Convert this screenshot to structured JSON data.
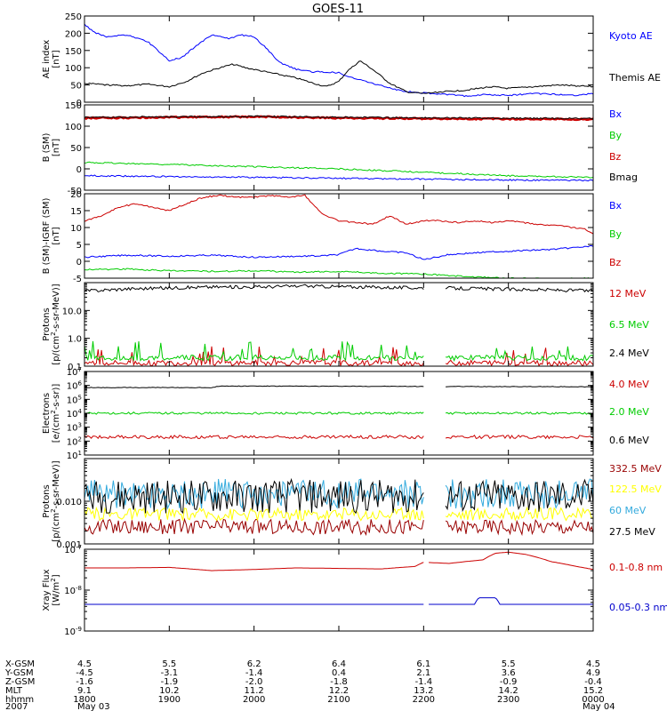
{
  "chart_data": {
    "type": "line",
    "title": "GOES-11",
    "x_range_hours": [
      18,
      24
    ],
    "panels": [
      {
        "ylabel": "AE index [nT]",
        "scale": "linear",
        "ylim": [
          0,
          250
        ],
        "ticks": [
          0,
          50,
          100,
          150,
          200,
          250
        ],
        "tick_labels": [
          "0",
          "50",
          "100",
          "150",
          "200",
          "250"
        ],
        "series": [
          {
            "name": "Kyoto AE",
            "color": "#0000ff",
            "x": [
              18.0,
              18.1,
              18.25,
              18.5,
              18.75,
              19.0,
              19.15,
              19.3,
              19.5,
              19.7,
              19.85,
              20.0,
              20.15,
              20.3,
              20.5,
              20.7,
              20.85,
              21.0,
              21.15,
              21.3,
              21.5,
              21.7,
              21.9,
              22.1,
              22.3,
              22.5,
              22.7,
              23.0,
              23.3,
              23.6,
              23.8,
              24.0
            ],
            "y": [
              225,
              205,
              190,
              195,
              175,
              120,
              130,
              160,
              195,
              185,
              195,
              190,
              155,
              115,
              95,
              88,
              88,
              85,
              72,
              62,
              48,
              35,
              28,
              25,
              22,
              18,
              22,
              20,
              25,
              22,
              20,
              25
            ]
          },
          {
            "name": "Themis AE",
            "color": "#000000",
            "x": [
              18.0,
              18.25,
              18.5,
              18.75,
              19.0,
              19.2,
              19.4,
              19.6,
              19.75,
              19.9,
              20.1,
              20.3,
              20.5,
              20.7,
              20.85,
              21.0,
              21.1,
              21.25,
              21.4,
              21.6,
              21.8,
              22.0,
              22.2,
              22.5,
              22.8,
              23.0,
              23.3,
              23.6,
              24.0
            ],
            "y": [
              55,
              50,
              48,
              52,
              45,
              60,
              85,
              100,
              110,
              100,
              90,
              80,
              70,
              55,
              45,
              60,
              90,
              120,
              95,
              55,
              30,
              25,
              30,
              35,
              45,
              40,
              45,
              50,
              45
            ]
          }
        ],
        "legend": [
          "Kyoto AE",
          "Themis AE"
        ]
      },
      {
        "ylabel": "B (SM) [nT]",
        "scale": "linear",
        "ylim": [
          -50,
          150
        ],
        "ticks": [
          -50,
          0,
          50,
          100,
          150
        ],
        "tick_labels": [
          "-50",
          "0",
          "50",
          "100",
          "150"
        ],
        "series": [
          {
            "name": "Bx",
            "color": "#0000ff",
            "x": [
              18.0,
              19.0,
              20.0,
              21.0,
              22.0,
              23.0,
              24.0
            ],
            "y": [
              -16,
              -18,
              -20,
              -22,
              -24,
              -26,
              -27
            ]
          },
          {
            "name": "By",
            "color": "#00cc00",
            "x": [
              18.0,
              19.0,
              20.0,
              21.0,
              22.0,
              23.0,
              24.0
            ],
            "y": [
              15,
              10,
              5,
              0,
              -8,
              -16,
              -20
            ]
          },
          {
            "name": "Bz",
            "color": "#cc0000",
            "x": [
              18.0,
              19.0,
              20.0,
              21.0,
              22.0,
              23.0,
              24.0
            ],
            "y": [
              119,
              121,
              122,
              119,
              118,
              117,
              116
            ]
          },
          {
            "name": "Bmag",
            "color": "#000000",
            "x": [
              18.0,
              19.0,
              20.0,
              21.0,
              22.0,
              23.0,
              24.0
            ],
            "y": [
              121,
              122,
              123,
              121,
              120,
              119,
              118
            ]
          }
        ],
        "legend": [
          "Bx",
          "By",
          "Bz",
          "Bmag"
        ]
      },
      {
        "ylabel": "B (SM)-IGRF (SM) [nT]",
        "scale": "linear",
        "ylim": [
          -5,
          20
        ],
        "ticks": [
          -5,
          0,
          5,
          10,
          15,
          20
        ],
        "tick_labels": [
          "-5",
          "0",
          "5",
          "10",
          "15",
          "20"
        ],
        "series": [
          {
            "name": "Bx",
            "color": "#0000ff",
            "x": [
              18.0,
              18.5,
              19.0,
              19.5,
              20.0,
              20.5,
              20.8,
              21.0,
              21.2,
              21.5,
              21.8,
              22.0,
              22.3,
              22.6,
              23.0,
              23.5,
              24.0
            ],
            "y": [
              1.2,
              1.8,
              1.5,
              1.8,
              1.2,
              1.5,
              1.6,
              2.0,
              3.8,
              3.0,
              2.5,
              0.5,
              2.0,
              2.5,
              3.0,
              3.5,
              4.5
            ]
          },
          {
            "name": "By",
            "color": "#00cc00",
            "x": [
              18.0,
              18.5,
              19.0,
              19.5,
              20.0,
              20.5,
              21.0,
              21.5,
              22.0,
              22.5,
              23.0,
              23.5,
              24.0
            ],
            "y": [
              -2.5,
              -2.3,
              -2.8,
              -3.0,
              -2.8,
              -3.2,
              -3.0,
              -3.5,
              -3.8,
              -4.5,
              -5.0,
              -5.2,
              -5.0
            ]
          },
          {
            "name": "Bz",
            "color": "#cc0000",
            "x": [
              18.0,
              18.2,
              18.4,
              18.6,
              18.8,
              19.0,
              19.2,
              19.4,
              19.6,
              19.8,
              20.0,
              20.2,
              20.4,
              20.6,
              20.8,
              21.0,
              21.2,
              21.4,
              21.6,
              21.8,
              22.0,
              22.2,
              22.4,
              22.6,
              22.8,
              23.0,
              23.3,
              23.6,
              23.9,
              24.0
            ],
            "y": [
              12,
              13.5,
              16,
              17,
              16,
              15,
              17,
              19,
              19.5,
              19,
              19,
              19.5,
              19,
              19.5,
              14,
              12,
              11.5,
              11,
              13.5,
              11,
              12,
              12,
              11.5,
              12,
              11.5,
              12,
              11,
              10.5,
              9.5,
              8
            ]
          }
        ],
        "legend": [
          "Bx",
          "By",
          "Bz"
        ]
      },
      {
        "ylabel": "Protons [p/(cm^2-s-sr-MeV)]",
        "scale": "log",
        "ylim": [
          0.1,
          100
        ],
        "ticks": [
          0.1,
          1,
          10
        ],
        "tick_labels": [
          "0.1",
          "1.0",
          "10.0"
        ],
        "series": [
          {
            "name": "12 MeV",
            "color": "#cc0000",
            "x": [
              18.0,
              24.0
            ],
            "y": [
              0.13,
              0.13
            ]
          },
          {
            "name": "6.5 MeV",
            "color": "#00cc00",
            "x": [
              18.0,
              24.0
            ],
            "y": [
              0.2,
              0.2
            ]
          },
          {
            "name": "2.4 MeV",
            "color": "#000000",
            "x": [
              18.0,
              18.5,
              19.0,
              19.5,
              20.0,
              20.5,
              21.0,
              21.5,
              22.0,
              22.5,
              23.0,
              23.5,
              24.0
            ],
            "y": [
              50,
              60,
              65,
              70,
              70,
              75,
              72,
              68,
              65,
              62,
              58,
              55,
              50
            ]
          }
        ],
        "gap": [
          22.0,
          22.25
        ],
        "legend": [
          "12 MeV",
          "6.5 MeV",
          "2.4 MeV"
        ]
      },
      {
        "ylabel": "Electrons [e/(cm^2-s-sr)]",
        "scale": "log",
        "ylim": [
          10,
          10000000
        ],
        "ticks": [
          10,
          100,
          1000,
          10000,
          100000,
          1000000,
          10000000
        ],
        "tick_labels": [
          "10^1",
          "10^2",
          "10^3",
          "10^4",
          "10^5",
          "10^6",
          "10^7"
        ],
        "series": [
          {
            "name": "4.0 MeV",
            "color": "#cc0000",
            "x": [
              18.0,
              24.0
            ],
            "y": [
              200,
              200
            ]
          },
          {
            "name": "2.0 MeV",
            "color": "#00cc00",
            "x": [
              18.0,
              24.0
            ],
            "y": [
              10000,
              10000
            ]
          },
          {
            "name": "0.6 MeV",
            "color": "#000000",
            "x": [
              18.0,
              19.5,
              19.6,
              24.0
            ],
            "y": [
              700000,
              700000,
              900000,
              800000
            ]
          }
        ],
        "gap": [
          22.0,
          22.25
        ],
        "legend": [
          "4.0 MeV",
          "2.0 MeV",
          "0.6 MeV"
        ]
      },
      {
        "ylabel": "Protons [p/(cm^2-s-sr-MeV)]",
        "scale": "log",
        "ylim": [
          0.001,
          0.1
        ],
        "ticks": [
          0.001,
          0.01
        ],
        "tick_labels": [
          "0.001",
          "0.010"
        ],
        "series": [
          {
            "name": "332.5 MeV",
            "color": "#990000",
            "x": [
              18.0,
              24.0
            ],
            "y": [
              0.0025,
              0.0025
            ]
          },
          {
            "name": "122.5 MeV",
            "color": "#ffff00",
            "x": [
              18.0,
              24.0
            ],
            "y": [
              0.005,
              0.005
            ]
          },
          {
            "name": "60 MeV",
            "color": "#33aadd",
            "x": [
              18.0,
              24.0
            ],
            "y": [
              0.015,
              0.015
            ]
          },
          {
            "name": "27.5 MeV",
            "color": "#000000",
            "x": [
              18.0,
              24.0
            ],
            "y": [
              0.013,
              0.013
            ]
          }
        ],
        "gap": [
          22.0,
          22.25
        ],
        "legend": [
          "332.5 MeV",
          "122.5 MeV",
          "60 MeV",
          "27.5 MeV"
        ]
      },
      {
        "ylabel": "Xray Flux [W/m^2]",
        "scale": "log",
        "ylim": [
          1e-09,
          1e-07
        ],
        "ticks": [
          1e-09,
          1e-08,
          1e-07
        ],
        "tick_labels": [
          "10^-9",
          "10^-8",
          "10^-7"
        ],
        "series": [
          {
            "name": "0.1-0.8 nm",
            "color": "#cc0000",
            "x": [
              18.0,
              18.5,
              19.0,
              19.5,
              20.0,
              20.5,
              21.0,
              21.5,
              21.9,
              22.0,
              22.3,
              22.7,
              22.85,
              23.0,
              23.2,
              23.5,
              23.8,
              24.0
            ],
            "y": [
              3.5e-08,
              3.5e-08,
              3.6e-08,
              3e-08,
              3.2e-08,
              3.5e-08,
              3.4e-08,
              3.3e-08,
              3.8e-08,
              4.8e-08,
              4.5e-08,
              5.5e-08,
              8e-08,
              8.5e-08,
              7.5e-08,
              5e-08,
              3.8e-08,
              3.2e-08
            ]
          },
          {
            "name": "0.05-0.3 nm",
            "color": "#0000cc",
            "x": [
              18.0,
              22.0,
              22.6,
              22.65,
              22.85,
              22.9,
              24.0
            ],
            "y": [
              4.5e-09,
              4.5e-09,
              4.5e-09,
              6.5e-09,
              6.5e-09,
              4.5e-09,
              4.5e-09
            ]
          }
        ],
        "gap": [
          22.0,
          22.05
        ],
        "legend": [
          "0.1-0.8 nm",
          "0.05-0.3 nm"
        ]
      }
    ],
    "xaxis": {
      "ticks": [
        18,
        19,
        20,
        21,
        22,
        23,
        24
      ],
      "row_labels": [
        "X-GSM",
        "Y-GSM",
        "Z-GSM",
        "MLT",
        "hhmm",
        "2007"
      ],
      "rows": [
        [
          "4.5",
          "5.5",
          "6.2",
          "6.4",
          "6.1",
          "5.5",
          "4.5"
        ],
        [
          "-4.5",
          "-3.1",
          "-1.4",
          "0.4",
          "2.1",
          "3.6",
          "4.9"
        ],
        [
          "-1.6",
          "-1.9",
          "-2.0",
          "-1.8",
          "-1.4",
          "-0.9",
          "-0.4"
        ],
        [
          "9.1",
          "10.2",
          "11.2",
          "12.2",
          "13.2",
          "14.2",
          "15.2"
        ],
        [
          "1800",
          "1900",
          "2000",
          "2100",
          "2200",
          "2300",
          "0000"
        ]
      ],
      "dates": [
        "May 03",
        "May 04"
      ]
    }
  }
}
